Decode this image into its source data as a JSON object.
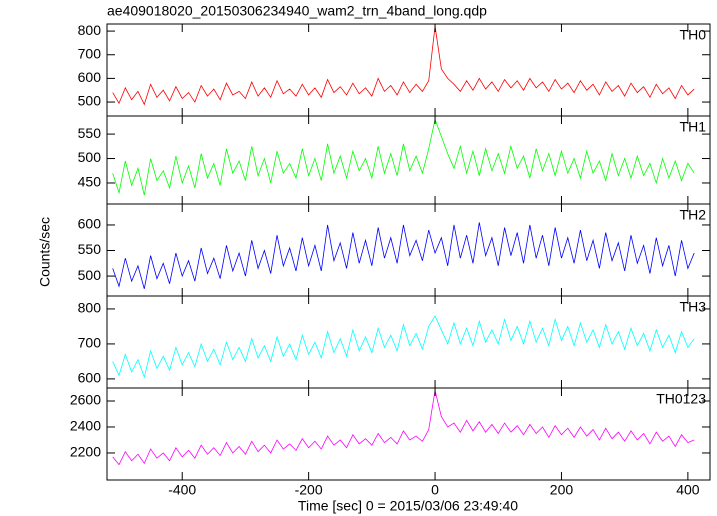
{
  "chart_data": [
    {
      "type": "line",
      "title": "ae409018020_20150306234940_wam2_trn_4band_long.qdp",
      "panel_label": "TH0",
      "color": "#ff0000",
      "ylim": [
        441,
        830
      ],
      "yticks": [
        500,
        600,
        700,
        800
      ],
      "x": [
        -510,
        -500,
        -490,
        -480,
        -470,
        -460,
        -450,
        -440,
        -430,
        -420,
        -410,
        -400,
        -390,
        -380,
        -370,
        -360,
        -350,
        -340,
        -330,
        -320,
        -310,
        -300,
        -290,
        -280,
        -270,
        -260,
        -250,
        -240,
        -230,
        -220,
        -210,
        -200,
        -190,
        -180,
        -170,
        -160,
        -150,
        -140,
        -130,
        -120,
        -110,
        -100,
        -90,
        -80,
        -70,
        -60,
        -50,
        -40,
        -30,
        -20,
        -10,
        0,
        10,
        20,
        30,
        40,
        50,
        60,
        70,
        80,
        90,
        100,
        110,
        120,
        130,
        140,
        150,
        160,
        170,
        180,
        190,
        200,
        210,
        220,
        230,
        240,
        250,
        260,
        270,
        280,
        290,
        300,
        310,
        320,
        330,
        340,
        350,
        360,
        370,
        380,
        390,
        400,
        410
      ],
      "values": [
        540,
        495,
        560,
        510,
        545,
        490,
        575,
        520,
        550,
        505,
        565,
        515,
        540,
        500,
        570,
        525,
        555,
        510,
        580,
        530,
        545,
        515,
        585,
        525,
        560,
        520,
        590,
        535,
        555,
        525,
        575,
        530,
        560,
        520,
        595,
        540,
        565,
        530,
        580,
        535,
        560,
        525,
        600,
        545,
        570,
        530,
        585,
        540,
        575,
        545,
        590,
        820,
        640,
        600,
        575,
        545,
        590,
        550,
        600,
        555,
        585,
        545,
        595,
        560,
        590,
        550,
        600,
        560,
        585,
        545,
        595,
        555,
        580,
        540,
        590,
        550,
        575,
        530,
        585,
        545,
        570,
        525,
        580,
        540,
        565,
        520,
        575,
        535,
        560,
        515,
        570,
        530,
        555
      ]
    },
    {
      "type": "line",
      "panel_label": "TH1",
      "color": "#00ff00",
      "ylim": [
        407,
        587
      ],
      "yticks": [
        450,
        500,
        550
      ],
      "x": [
        -510,
        -500,
        -490,
        -480,
        -470,
        -460,
        -450,
        -440,
        -430,
        -420,
        -410,
        -400,
        -390,
        -380,
        -370,
        -360,
        -350,
        -340,
        -330,
        -320,
        -310,
        -300,
        -290,
        -280,
        -270,
        -260,
        -250,
        -240,
        -230,
        -220,
        -210,
        -200,
        -190,
        -180,
        -170,
        -160,
        -150,
        -140,
        -130,
        -120,
        -110,
        -100,
        -90,
        -80,
        -70,
        -60,
        -50,
        -40,
        -30,
        -20,
        -10,
        0,
        10,
        20,
        30,
        40,
        50,
        60,
        70,
        80,
        90,
        100,
        110,
        120,
        130,
        140,
        150,
        160,
        170,
        180,
        190,
        200,
        210,
        220,
        230,
        240,
        250,
        260,
        270,
        280,
        290,
        300,
        310,
        320,
        330,
        340,
        350,
        360,
        370,
        380,
        390,
        400,
        410
      ],
      "values": [
        470,
        430,
        495,
        445,
        480,
        425,
        500,
        455,
        475,
        440,
        505,
        450,
        485,
        440,
        510,
        460,
        490,
        445,
        520,
        470,
        495,
        455,
        525,
        465,
        500,
        450,
        515,
        470,
        490,
        460,
        520,
        465,
        500,
        455,
        530,
        470,
        505,
        460,
        515,
        475,
        500,
        460,
        525,
        470,
        510,
        465,
        530,
        475,
        505,
        470,
        520,
        580,
        545,
        510,
        480,
        525,
        470,
        515,
        465,
        520,
        475,
        510,
        470,
        525,
        480,
        505,
        460,
        520,
        475,
        510,
        465,
        515,
        470,
        500,
        460,
        515,
        470,
        495,
        455,
        510,
        465,
        500,
        460,
        505,
        465,
        490,
        450,
        500,
        460,
        495,
        455,
        490,
        470
      ]
    },
    {
      "type": "line",
      "panel_label": "TH2",
      "color": "#0000ff",
      "ylabel": "Counts/sec",
      "ylim": [
        461,
        641
      ],
      "yticks": [
        500,
        550,
        600
      ],
      "x": [
        -510,
        -500,
        -490,
        -480,
        -470,
        -460,
        -450,
        -440,
        -430,
        -420,
        -410,
        -400,
        -390,
        -380,
        -370,
        -360,
        -350,
        -340,
        -330,
        -320,
        -310,
        -300,
        -290,
        -280,
        -270,
        -260,
        -250,
        -240,
        -230,
        -220,
        -210,
        -200,
        -190,
        -180,
        -170,
        -160,
        -150,
        -140,
        -130,
        -120,
        -110,
        -100,
        -90,
        -80,
        -70,
        -60,
        -50,
        -40,
        -30,
        -20,
        -10,
        0,
        10,
        20,
        30,
        40,
        50,
        60,
        70,
        80,
        90,
        100,
        110,
        120,
        130,
        140,
        150,
        160,
        170,
        180,
        190,
        200,
        210,
        220,
        230,
        240,
        250,
        260,
        270,
        280,
        290,
        300,
        310,
        320,
        330,
        340,
        350,
        360,
        370,
        380,
        390,
        400,
        410
      ],
      "values": [
        515,
        480,
        535,
        490,
        520,
        475,
        540,
        495,
        525,
        485,
        545,
        500,
        530,
        490,
        555,
        505,
        535,
        495,
        560,
        510,
        545,
        500,
        570,
        515,
        550,
        505,
        580,
        520,
        555,
        510,
        575,
        520,
        560,
        510,
        600,
        530,
        565,
        515,
        585,
        525,
        570,
        520,
        595,
        535,
        575,
        525,
        600,
        540,
        570,
        530,
        590,
        545,
        575,
        520,
        600,
        535,
        580,
        525,
        605,
        540,
        575,
        520,
        595,
        540,
        585,
        525,
        600,
        535,
        580,
        520,
        595,
        535,
        575,
        525,
        590,
        530,
        570,
        515,
        585,
        530,
        565,
        510,
        580,
        525,
        560,
        505,
        575,
        520,
        560,
        500,
        570,
        515,
        545
      ]
    },
    {
      "type": "line",
      "panel_label": "TH3",
      "color": "#00ffff",
      "ylim": [
        574,
        837
      ],
      "yticks": [
        600,
        700,
        800
      ],
      "x": [
        -510,
        -500,
        -490,
        -480,
        -470,
        -460,
        -450,
        -440,
        -430,
        -420,
        -410,
        -400,
        -390,
        -380,
        -370,
        -360,
        -350,
        -340,
        -330,
        -320,
        -310,
        -300,
        -290,
        -280,
        -270,
        -260,
        -250,
        -240,
        -230,
        -220,
        -210,
        -200,
        -190,
        -180,
        -170,
        -160,
        -150,
        -140,
        -130,
        -120,
        -110,
        -100,
        -90,
        -80,
        -70,
        -60,
        -50,
        -40,
        -30,
        -20,
        -10,
        0,
        10,
        20,
        30,
        40,
        50,
        60,
        70,
        80,
        90,
        100,
        110,
        120,
        130,
        140,
        150,
        160,
        170,
        180,
        190,
        200,
        210,
        220,
        230,
        240,
        250,
        260,
        270,
        280,
        290,
        300,
        310,
        320,
        330,
        340,
        350,
        360,
        370,
        380,
        390,
        400,
        410
      ],
      "values": [
        650,
        610,
        670,
        620,
        655,
        605,
        680,
        630,
        665,
        625,
        690,
        640,
        675,
        635,
        700,
        650,
        685,
        640,
        705,
        655,
        690,
        650,
        715,
        660,
        695,
        650,
        720,
        665,
        700,
        655,
        725,
        670,
        705,
        660,
        735,
        675,
        715,
        665,
        740,
        680,
        720,
        675,
        745,
        690,
        725,
        680,
        755,
        695,
        730,
        685,
        750,
        780,
        740,
        700,
        760,
        700,
        745,
        695,
        765,
        705,
        740,
        700,
        770,
        710,
        750,
        700,
        765,
        705,
        745,
        695,
        770,
        710,
        750,
        695,
        760,
        705,
        740,
        690,
        755,
        700,
        735,
        685,
        745,
        695,
        730,
        680,
        740,
        690,
        725,
        675,
        735,
        690,
        715
      ]
    },
    {
      "type": "line",
      "panel_label": "TH0123",
      "color": "#ff00ff",
      "xlabel": "Time [sec] 0 = 2015/03/06 23:49:40",
      "xlim": [
        -519,
        435
      ],
      "xticks": [
        -400,
        -200,
        0,
        200,
        400
      ],
      "ylim": [
        1992,
        2700
      ],
      "yticks": [
        2200,
        2400,
        2600
      ],
      "x": [
        -510,
        -500,
        -490,
        -480,
        -470,
        -460,
        -450,
        -440,
        -430,
        -420,
        -410,
        -400,
        -390,
        -380,
        -370,
        -360,
        -350,
        -340,
        -330,
        -320,
        -310,
        -300,
        -290,
        -280,
        -270,
        -260,
        -250,
        -240,
        -230,
        -220,
        -210,
        -200,
        -190,
        -180,
        -170,
        -160,
        -150,
        -140,
        -130,
        -120,
        -110,
        -100,
        -90,
        -80,
        -70,
        -60,
        -50,
        -40,
        -30,
        -20,
        -10,
        0,
        10,
        20,
        30,
        40,
        50,
        60,
        70,
        80,
        90,
        100,
        110,
        120,
        130,
        140,
        150,
        160,
        170,
        180,
        190,
        200,
        210,
        220,
        230,
        240,
        250,
        260,
        270,
        280,
        290,
        300,
        310,
        320,
        330,
        340,
        350,
        360,
        370,
        380,
        390,
        400,
        410
      ],
      "values": [
        2170,
        2110,
        2210,
        2140,
        2190,
        2120,
        2230,
        2160,
        2200,
        2140,
        2240,
        2170,
        2220,
        2160,
        2260,
        2190,
        2240,
        2180,
        2280,
        2200,
        2250,
        2190,
        2290,
        2210,
        2260,
        2200,
        2300,
        2230,
        2270,
        2220,
        2310,
        2240,
        2290,
        2230,
        2330,
        2260,
        2300,
        2240,
        2340,
        2270,
        2310,
        2260,
        2350,
        2280,
        2320,
        2270,
        2370,
        2300,
        2330,
        2290,
        2380,
        2680,
        2480,
        2400,
        2430,
        2360,
        2450,
        2370,
        2440,
        2360,
        2420,
        2350,
        2430,
        2360,
        2410,
        2340,
        2420,
        2350,
        2400,
        2320,
        2410,
        2340,
        2390,
        2320,
        2400,
        2330,
        2380,
        2300,
        2390,
        2310,
        2360,
        2290,
        2370,
        2300,
        2350,
        2270,
        2360,
        2290,
        2330,
        2250,
        2340,
        2280,
        2300
      ]
    }
  ]
}
